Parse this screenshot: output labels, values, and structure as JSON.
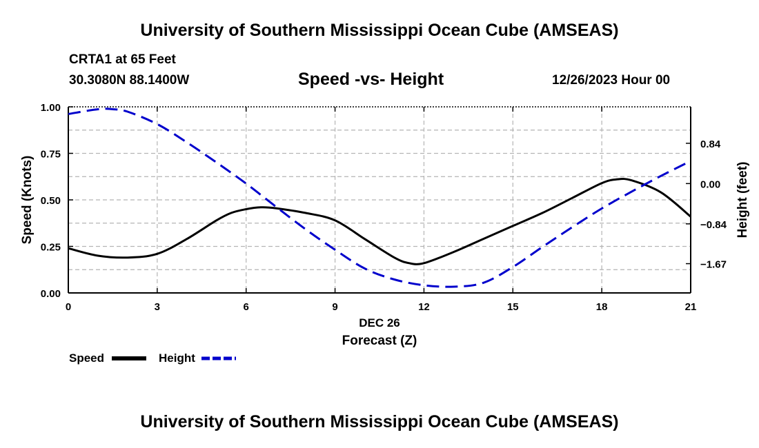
{
  "header": {
    "main_title": "University of Southern Mississippi Ocean Cube (AMSEAS)",
    "station": "CRTA1 at 65 Feet",
    "coords": "30.3080N  88.1400W",
    "chart_title": "Speed -vs- Height",
    "datetime": "12/26/2023 Hour 00"
  },
  "footer": {
    "main_title": "University of Southern Mississippi Ocean Cube (AMSEAS)"
  },
  "legend": {
    "speed_label": "Speed",
    "height_label": "Height"
  },
  "colors": {
    "speed": "#000000",
    "height": "#0000cc",
    "grid": "#b4b4b4"
  },
  "chart_data": {
    "type": "line",
    "title": "Speed -vs- Height",
    "xlabel": "Forecast (Z)",
    "xlabel_date": "DEC 26",
    "ylabel": "Speed (Knots)",
    "y2label": "Height (feet)",
    "xlim": [
      0,
      21
    ],
    "ylim": [
      0,
      1.0
    ],
    "y2lim": [
      -2.28,
      1.6
    ],
    "x_ticks": [
      0,
      3,
      6,
      9,
      12,
      15,
      18,
      21
    ],
    "x_tick_labels": [
      "0",
      "3",
      "6",
      "9",
      "12",
      "15",
      "18",
      "21"
    ],
    "y_ticks": [
      0,
      0.25,
      0.5,
      0.75,
      1.0
    ],
    "y_tick_labels": [
      "0.00",
      "0.25",
      "0.50",
      "0.75",
      "1.00"
    ],
    "y2_ticks": [
      0.84,
      0,
      -0.84,
      -1.67
    ],
    "y2_tick_labels": [
      "0.84",
      "0.00",
      "−0.84",
      "−1.67"
    ],
    "grid": true,
    "series": [
      {
        "name": "Speed",
        "axis": "left",
        "style": "solid",
        "x": [
          0,
          1,
          2,
          3,
          4,
          5,
          5.5,
          6,
          6.5,
          7,
          8,
          9,
          10,
          11,
          11.5,
          12,
          13,
          14,
          15,
          16,
          17,
          18,
          18.5,
          19,
          20,
          21
        ],
        "values": [
          0.24,
          0.2,
          0.19,
          0.21,
          0.29,
          0.39,
          0.43,
          0.45,
          0.46,
          0.455,
          0.43,
          0.39,
          0.29,
          0.19,
          0.16,
          0.16,
          0.22,
          0.29,
          0.36,
          0.43,
          0.51,
          0.59,
          0.61,
          0.605,
          0.54,
          0.41
        ]
      },
      {
        "name": "Height",
        "axis": "right",
        "style": "dashed",
        "x": [
          0,
          1,
          1.5,
          2,
          3,
          4,
          5,
          6,
          7,
          8,
          9,
          10,
          11,
          12,
          13,
          14,
          15,
          16,
          17,
          18,
          19,
          20,
          21
        ],
        "values": [
          1.45,
          1.55,
          1.55,
          1.5,
          1.24,
          0.86,
          0.44,
          0.0,
          -0.48,
          -0.95,
          -1.38,
          -1.77,
          -2.0,
          -2.12,
          -2.15,
          -2.07,
          -1.74,
          -1.32,
          -0.91,
          -0.52,
          -0.17,
          0.16,
          0.47
        ]
      }
    ]
  }
}
